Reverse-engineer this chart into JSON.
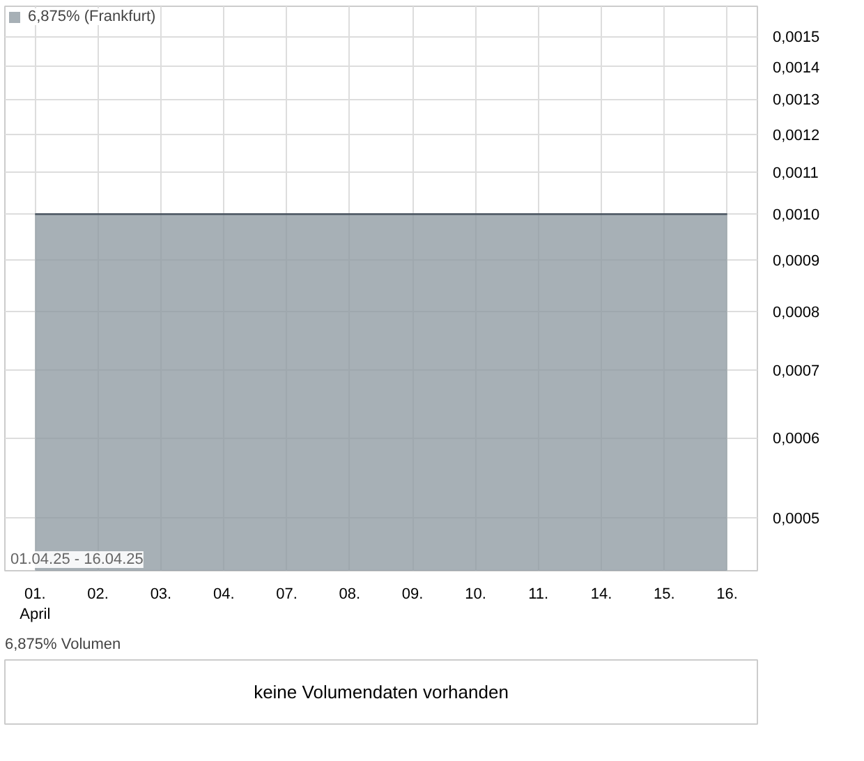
{
  "chart_data": [
    {
      "type": "area",
      "categories": [
        "01.\nApril",
        "02.",
        "03.",
        "04.",
        "07.",
        "08.",
        "09.",
        "10.",
        "11.",
        "14.",
        "15.",
        "16."
      ],
      "series": [
        {
          "name": "6,875% (Frankfurt)",
          "color": "#8a969e",
          "values": [
            0.001,
            0.001,
            0.001,
            0.001,
            0.001,
            0.001,
            0.001,
            0.001,
            0.001,
            0.001,
            0.001,
            0.001
          ]
        }
      ],
      "log": true,
      "ylim": [
        0.000443,
        0.001607
      ],
      "yticks": [
        {
          "value": 0.0005,
          "label": "0,0005"
        },
        {
          "value": 0.0006,
          "label": "0,0006"
        },
        {
          "value": 0.0007,
          "label": "0,0007"
        },
        {
          "value": 0.0008,
          "label": "0,0008"
        },
        {
          "value": 0.0009,
          "label": "0,0009"
        },
        {
          "value": 0.001,
          "label": "0,0010"
        },
        {
          "value": 0.0011,
          "label": "0,0011"
        },
        {
          "value": 0.0012,
          "label": "0,0012"
        },
        {
          "value": 0.0013,
          "label": "0,0013"
        },
        {
          "value": 0.0014,
          "label": "0,0014"
        },
        {
          "value": 0.0015,
          "label": "0,0015"
        }
      ],
      "grid": true,
      "legend": "top left",
      "annotations": [
        "01.04.25 - 16.04.25"
      ]
    },
    {
      "type": "other",
      "title": "6,875% Volumen",
      "annotations": [
        "keine Volumendaten vorhanden"
      ]
    }
  ]
}
